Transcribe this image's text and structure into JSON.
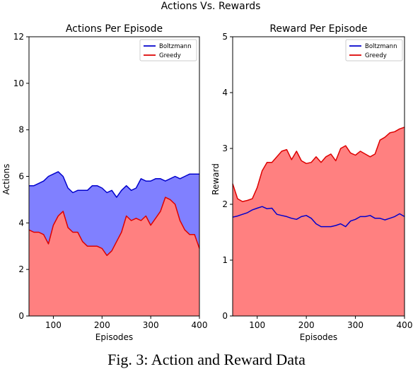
{
  "figure": {
    "suptitle": "Actions Vs. Rewards",
    "caption": "Fig. 3: Action and Reward Data"
  },
  "chart_data": [
    {
      "type": "area",
      "title": "Actions Per Episode",
      "xlabel": "Episodes",
      "ylabel": "Actions",
      "xlim": [
        50,
        400
      ],
      "ylim": [
        0,
        12
      ],
      "xticks": [
        100,
        200,
        300,
        400
      ],
      "yticks": [
        0,
        2,
        4,
        6,
        8,
        10,
        12
      ],
      "legend": "top-right",
      "x": [
        50,
        60,
        70,
        80,
        90,
        100,
        110,
        120,
        130,
        140,
        150,
        160,
        170,
        180,
        190,
        200,
        210,
        220,
        230,
        240,
        250,
        260,
        270,
        280,
        290,
        300,
        310,
        320,
        330,
        340,
        350,
        360,
        370,
        380,
        390,
        400
      ],
      "series": [
        {
          "name": "Boltzmann",
          "color": "#0000cc",
          "fill": "#8080ff",
          "values": [
            5.6,
            5.6,
            5.7,
            5.8,
            6.0,
            6.1,
            6.2,
            6.0,
            5.5,
            5.3,
            5.4,
            5.4,
            5.4,
            5.6,
            5.6,
            5.5,
            5.3,
            5.4,
            5.1,
            5.4,
            5.6,
            5.4,
            5.5,
            5.9,
            5.8,
            5.8,
            5.9,
            5.9,
            5.8,
            5.9,
            6.0,
            5.9,
            6.0,
            6.1,
            6.1,
            6.1
          ]
        },
        {
          "name": "Greedy",
          "color": "#dd0000",
          "fill": "#ff8080",
          "values": [
            3.7,
            3.6,
            3.6,
            3.5,
            3.1,
            3.9,
            4.3,
            4.5,
            3.8,
            3.6,
            3.6,
            3.2,
            3.0,
            3.0,
            3.0,
            2.9,
            2.6,
            2.8,
            3.2,
            3.6,
            4.3,
            4.1,
            4.2,
            4.1,
            4.3,
            3.9,
            4.2,
            4.5,
            5.1,
            5.0,
            4.8,
            4.1,
            3.7,
            3.5,
            3.5,
            2.9
          ]
        }
      ]
    },
    {
      "type": "area",
      "title": "Reward Per Episode",
      "xlabel": "Episodes",
      "ylabel": "Reward",
      "xlim": [
        50,
        400
      ],
      "ylim": [
        0,
        5
      ],
      "xticks": [
        100,
        200,
        300,
        400
      ],
      "yticks": [
        0,
        1,
        2,
        3,
        4,
        5
      ],
      "legend": "top-right",
      "x": [
        50,
        60,
        70,
        80,
        90,
        100,
        110,
        120,
        130,
        140,
        150,
        160,
        170,
        180,
        190,
        200,
        210,
        220,
        230,
        240,
        250,
        260,
        270,
        280,
        290,
        300,
        310,
        320,
        330,
        340,
        350,
        360,
        370,
        380,
        390,
        400
      ],
      "series": [
        {
          "name": "Boltzmann",
          "color": "#0000cc",
          "fill": "#8080ff",
          "values": [
            1.77,
            1.79,
            1.82,
            1.85,
            1.9,
            1.93,
            1.96,
            1.92,
            1.93,
            1.82,
            1.8,
            1.78,
            1.75,
            1.73,
            1.78,
            1.8,
            1.75,
            1.65,
            1.6,
            1.6,
            1.6,
            1.62,
            1.65,
            1.6,
            1.7,
            1.73,
            1.78,
            1.78,
            1.8,
            1.75,
            1.75,
            1.72,
            1.75,
            1.78,
            1.83,
            1.78
          ]
        },
        {
          "name": "Greedy",
          "color": "#dd0000",
          "fill": "#ff8080",
          "values": [
            2.37,
            2.1,
            2.05,
            2.07,
            2.1,
            2.3,
            2.6,
            2.75,
            2.75,
            2.85,
            2.95,
            2.98,
            2.8,
            2.95,
            2.78,
            2.73,
            2.75,
            2.85,
            2.75,
            2.85,
            2.9,
            2.78,
            3.0,
            3.05,
            2.92,
            2.88,
            2.95,
            2.9,
            2.85,
            2.9,
            3.15,
            3.2,
            3.28,
            3.3,
            3.35,
            3.38
          ]
        }
      ]
    }
  ]
}
